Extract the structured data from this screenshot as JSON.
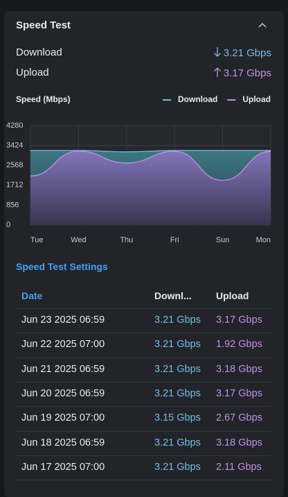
{
  "panel": {
    "title": "Speed Test"
  },
  "summary": [
    {
      "label": "Download",
      "value": "3.21 Gbps"
    },
    {
      "label": "Upload",
      "value": "3.17 Gbps"
    }
  ],
  "chart_data": {
    "type": "area",
    "title": "Speed (Mbps)",
    "categories": [
      "Tue",
      "Wed",
      "Thu",
      "Fri",
      "Sun",
      "Mon"
    ],
    "series": [
      {
        "name": "Download",
        "color": "#72bde6",
        "values": [
          3210,
          3210,
          3150,
          3210,
          3210,
          3210
        ]
      },
      {
        "name": "Upload",
        "color": "#c290e6",
        "values": [
          2110,
          3180,
          2670,
          3170,
          1920,
          3170
        ]
      }
    ],
    "ylim": [
      0,
      4280
    ],
    "yticks": [
      0,
      856,
      1712,
      2568,
      3424,
      4280
    ],
    "grid": true
  },
  "settings": {
    "title": "Speed Test Settings",
    "table": {
      "header": [
        "Date",
        "Downl...",
        "Upload"
      ],
      "rows": [
        [
          "Jun 23 2025 06:59",
          "3.21 Gbps",
          "3.17 Gbps"
        ],
        [
          "Jun 22 2025 07:00",
          "3.21 Gbps",
          "1.92 Gbps"
        ],
        [
          "Jun 21 2025 06:59",
          "3.21 Gbps",
          "3.18 Gbps"
        ],
        [
          "Jun 20 2025 06:59",
          "3.21 Gbps",
          "3.17 Gbps"
        ],
        [
          "Jun 19 2025 07:00",
          "3.15 Gbps",
          "2.67 Gbps"
        ],
        [
          "Jun 18 2025 06:59",
          "3.21 Gbps",
          "3.18 Gbps"
        ],
        [
          "Jun 17 2025 07:00",
          "3.21 Gbps",
          "2.11 Gbps"
        ]
      ]
    }
  }
}
